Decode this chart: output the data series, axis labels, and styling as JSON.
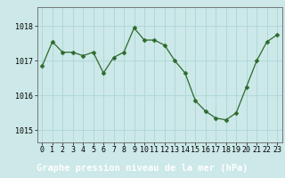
{
  "x": [
    0,
    1,
    2,
    3,
    4,
    5,
    6,
    7,
    8,
    9,
    10,
    11,
    12,
    13,
    14,
    15,
    16,
    17,
    18,
    19,
    20,
    21,
    22,
    23
  ],
  "y": [
    1016.85,
    1017.55,
    1017.25,
    1017.25,
    1017.15,
    1017.25,
    1016.65,
    1017.1,
    1017.25,
    1017.95,
    1017.6,
    1017.6,
    1017.45,
    1017.0,
    1016.65,
    1015.85,
    1015.55,
    1015.35,
    1015.3,
    1015.5,
    1016.25,
    1017.0,
    1017.55,
    1017.75
  ],
  "line_color": "#2d6a2d",
  "marker": "D",
  "marker_size": 2.5,
  "bg_color": "#cce8e8",
  "label_bg_color": "#3d7a3d",
  "grid_color": "#b0d8d8",
  "xlabel": "Graphe pression niveau de la mer (hPa)",
  "xlabel_fontsize": 7.5,
  "ytick_labels": [
    "1015",
    "1016",
    "1017",
    "1018"
  ],
  "ytick_values": [
    1015,
    1016,
    1017,
    1018
  ],
  "xticks": [
    0,
    1,
    2,
    3,
    4,
    5,
    6,
    7,
    8,
    9,
    10,
    11,
    12,
    13,
    14,
    15,
    16,
    17,
    18,
    19,
    20,
    21,
    22,
    23
  ],
  "ylim": [
    1014.65,
    1018.55
  ],
  "xlim": [
    -0.5,
    23.5
  ],
  "tick_fontsize": 6.0,
  "spine_color": "#666666",
  "label_text_color": "#ffffff"
}
